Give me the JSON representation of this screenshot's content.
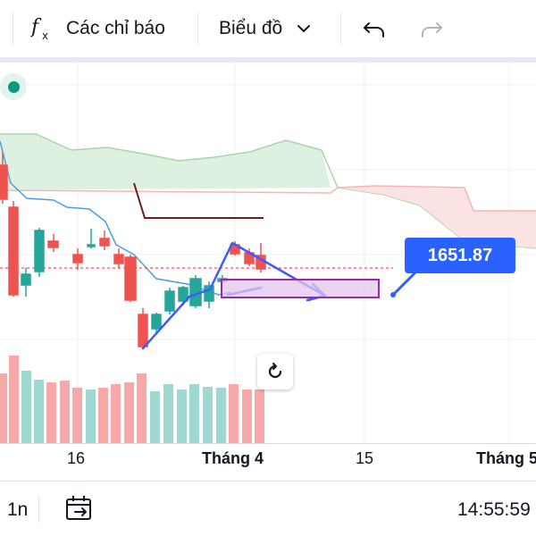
{
  "toolbar": {
    "indicators_label": "Các chỉ báo",
    "chart_type_label": "Biểu đồ",
    "icons": [
      "fx-icon",
      "chevron-down-icon",
      "undo-icon",
      "redo-icon"
    ]
  },
  "chart": {
    "price_label": "1651.87",
    "colors": {
      "up": "#26a69a",
      "down": "#ef5350",
      "accent": "#2962ff",
      "cloud_green": "#a5d6a7",
      "cloud_red": "#f5b5b5",
      "drawing": "#3d5afe",
      "rectangle": "#9c27b0"
    }
  },
  "time_axis": {
    "ticks": [
      "16",
      "Tháng 4",
      "15",
      "Tháng 5"
    ]
  },
  "bottom_bar": {
    "interval": "1n",
    "clock": "14:55:59"
  }
}
